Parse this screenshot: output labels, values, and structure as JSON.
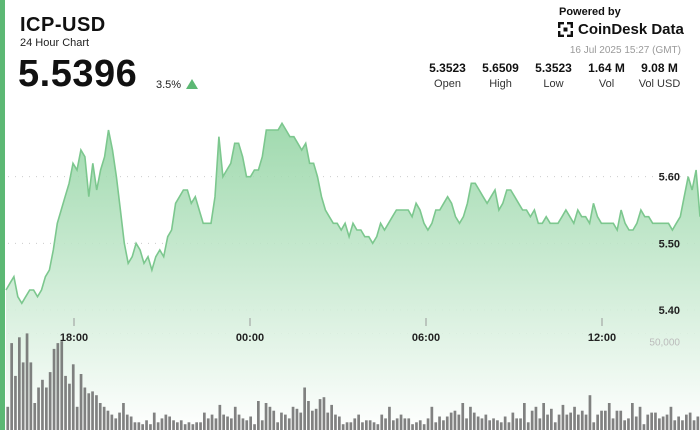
{
  "header": {
    "title": "ICP-USD",
    "subtitle": "24 Hour Chart",
    "price": "5.5396",
    "change": "3.5%",
    "change_direction": "up"
  },
  "branding": {
    "powered_by": "Powered by",
    "name": "CoinDesk Data",
    "timestamp": "16 Jul 2025 15:27 (GMT)"
  },
  "stats": [
    {
      "value": "5.3523",
      "label": "Open"
    },
    {
      "value": "5.6509",
      "label": "High"
    },
    {
      "value": "5.3523",
      "label": "Low"
    },
    {
      "value": "1.64 M",
      "label": "Vol"
    },
    {
      "value": "9.08 M",
      "label": "Vol USD"
    }
  ],
  "colors": {
    "accent": "#5cb874",
    "line": "#7cc78e",
    "area_top": "#8fd3a0",
    "volume_bar": "#6b6b6b",
    "grid": "#cccccc",
    "muted_text": "#9a9a9a"
  },
  "chart_data": {
    "type": "area",
    "x_ticks": [
      "18:00",
      "00:00",
      "06:00",
      "12:00"
    ],
    "y_ticks": [
      "5.40",
      "5.50",
      "5.60"
    ],
    "volume_tick": "50,000",
    "ylim": [
      5.28,
      5.76
    ],
    "volume_ylim": [
      0,
      58000
    ],
    "grid": true,
    "price_series": [
      5.43,
      5.44,
      5.45,
      5.42,
      5.41,
      5.42,
      5.43,
      5.43,
      5.42,
      5.43,
      5.45,
      5.46,
      5.49,
      5.53,
      5.55,
      5.57,
      5.59,
      5.62,
      5.61,
      5.64,
      5.63,
      5.57,
      5.62,
      5.58,
      5.61,
      5.63,
      5.67,
      5.64,
      5.6,
      5.55,
      5.5,
      5.47,
      5.48,
      5.5,
      5.49,
      5.47,
      5.48,
      5.46,
      5.48,
      5.49,
      5.48,
      5.51,
      5.52,
      5.56,
      5.57,
      5.58,
      5.58,
      5.56,
      5.57,
      5.55,
      5.53,
      5.53,
      5.53,
      5.57,
      5.66,
      5.6,
      5.61,
      5.62,
      5.65,
      5.65,
      5.63,
      5.6,
      5.6,
      5.61,
      5.61,
      5.63,
      5.67,
      5.67,
      5.67,
      5.67,
      5.68,
      5.67,
      5.66,
      5.66,
      5.65,
      5.64,
      5.65,
      5.62,
      5.62,
      5.6,
      5.57,
      5.55,
      5.54,
      5.53,
      5.53,
      5.52,
      5.53,
      5.51,
      5.53,
      5.52,
      5.52,
      5.51,
      5.51,
      5.5,
      5.51,
      5.53,
      5.52,
      5.53,
      5.54,
      5.55,
      5.55,
      5.55,
      5.55,
      5.54,
      5.56,
      5.55,
      5.53,
      5.52,
      5.53,
      5.55,
      5.55,
      5.56,
      5.57,
      5.56,
      5.54,
      5.53,
      5.54,
      5.56,
      5.59,
      5.59,
      5.58,
      5.57,
      5.56,
      5.57,
      5.58,
      5.55,
      5.56,
      5.58,
      5.58,
      5.57,
      5.56,
      5.55,
      5.55,
      5.54,
      5.55,
      5.53,
      5.53,
      5.54,
      5.53,
      5.53,
      5.53,
      5.54,
      5.55,
      5.54,
      5.53,
      5.55,
      5.54,
      5.54,
      5.53,
      5.56,
      5.54,
      5.53,
      5.53,
      5.53,
      5.53,
      5.52,
      5.55,
      5.53,
      5.52,
      5.52,
      5.53,
      5.55,
      5.54,
      5.54,
      5.53,
      5.53,
      5.53,
      5.53,
      5.53,
      5.52,
      5.53,
      5.54,
      5.57,
      5.6,
      5.58,
      5.61,
      5.54
    ],
    "volume_series": [
      12000,
      45000,
      28000,
      48000,
      35000,
      50000,
      35000,
      14000,
      22000,
      26000,
      22000,
      30000,
      42000,
      45000,
      46000,
      28000,
      24000,
      34000,
      12000,
      29000,
      22000,
      19000,
      20000,
      18000,
      14000,
      12000,
      10000,
      8000,
      6000,
      9000,
      14000,
      8000,
      7000,
      4000,
      4000,
      3000,
      5000,
      3000,
      9000,
      4000,
      6000,
      8000,
      7000,
      5000,
      4000,
      5000,
      3000,
      4000,
      3000,
      4000,
      4000,
      9000,
      6000,
      8000,
      6000,
      13000,
      8000,
      7000,
      6000,
      12000,
      8000,
      6000,
      5000,
      7000,
      3000,
      15000,
      5000,
      14000,
      12000,
      10000,
      4000,
      9000,
      8000,
      6000,
      12000,
      11000,
      9000,
      22000,
      15000,
      10000,
      11000,
      16000,
      17000,
      9000,
      13000,
      8000,
      7000,
      3000,
      4000,
      4000,
      6000,
      8000,
      4000,
      5000,
      5000,
      4000,
      3000,
      8000,
      6000,
      12000,
      5000,
      6000,
      8000,
      6000,
      6000,
      3000,
      4000,
      5000,
      3000,
      6000,
      12000,
      4000,
      7000,
      5000,
      7000,
      9000,
      10000,
      8000,
      14000,
      6000,
      12000,
      9000,
      7000,
      6000,
      8000,
      5000,
      6000,
      5000,
      4000,
      7000,
      4000,
      9000,
      6000,
      6000,
      14000,
      4000,
      10000,
      12000,
      6000,
      14000,
      8000,
      11000,
      4000,
      8000,
      13000,
      8000,
      9000,
      12000,
      8000,
      10000,
      8000,
      18000,
      4000,
      8000,
      10000,
      10000,
      14000,
      6000,
      10000,
      10000,
      5000,
      6000,
      14000,
      7000,
      12000,
      3000,
      8000,
      9000,
      9000,
      6000,
      7000,
      8000,
      12000,
      5000,
      7000,
      5000,
      8000,
      9000,
      5000,
      7000
    ]
  }
}
